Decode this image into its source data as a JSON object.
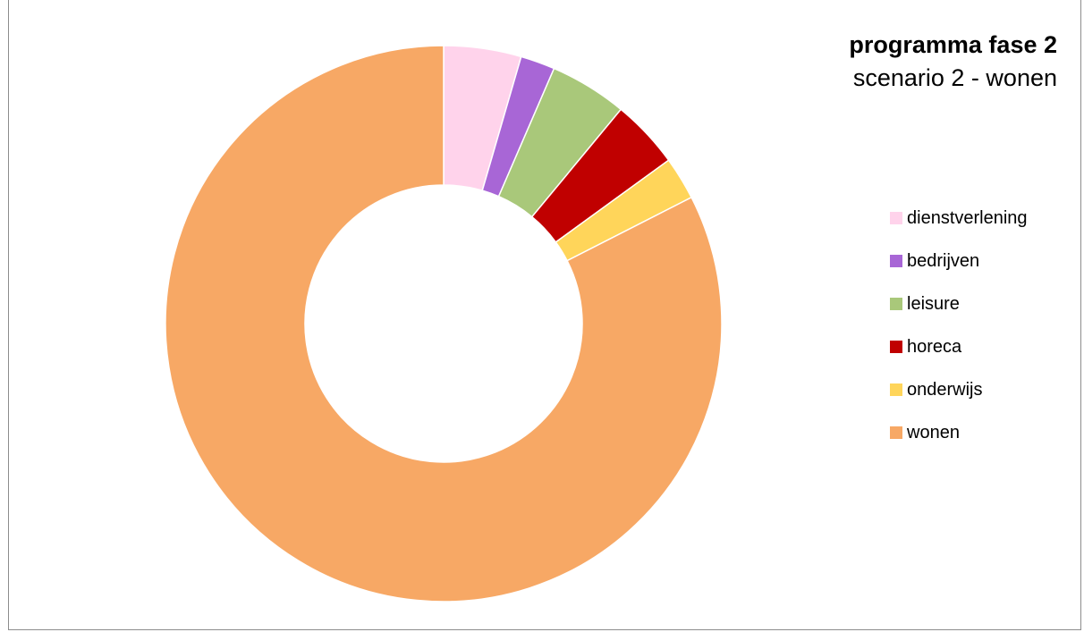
{
  "chart_data": {
    "type": "pie",
    "title": "programma fase 2",
    "subtitle": "scenario 2 - wonen",
    "categories": [
      "dienstverlening",
      "bedrijven",
      "leisure",
      "horeca",
      "onderwijs",
      "wonen"
    ],
    "values": [
      4.5,
      2.0,
      4.5,
      4.0,
      2.5,
      82.5
    ],
    "colors": [
      "#FFD3EB",
      "#A866D6",
      "#A9C87A",
      "#C00000",
      "#FFD55A",
      "#F7A865"
    ],
    "legend_position": "right"
  }
}
